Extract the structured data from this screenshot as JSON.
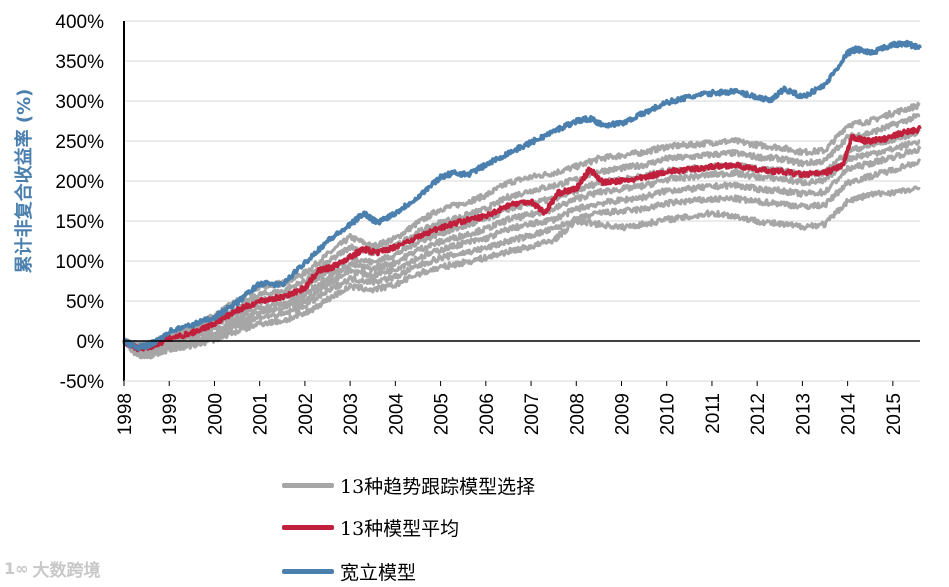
{
  "chart_data": {
    "type": "line",
    "title": "",
    "xlabel": "",
    "ylabel": "累计非复合收益率 (%)",
    "ylabel_color": "#4a7fae",
    "ylim": [
      -50,
      400
    ],
    "xlim": [
      1998,
      2015.6
    ],
    "y_ticks": [
      -50,
      0,
      50,
      100,
      150,
      200,
      250,
      300,
      350,
      400
    ],
    "y_tick_labels": [
      "-50%",
      "0%",
      "50%",
      "100%",
      "150%",
      "200%",
      "250%",
      "300%",
      "350%",
      "400%"
    ],
    "x_ticks": [
      "1998",
      "1999",
      "2000",
      "2001",
      "2002",
      "2003",
      "2004",
      "2005",
      "2006",
      "2007",
      "2008",
      "2009",
      "2010",
      "2011",
      "2012",
      "2013",
      "2014",
      "2015"
    ],
    "grid": true,
    "legend_position": "bottom",
    "series": [
      {
        "name": "13种趋势跟踪模型选择",
        "color": "#a6a6a6",
        "lines": [
          {
            "x": [
              1998,
              1998.3,
              1998.6,
              1999,
              1999.5,
              2000,
              2000.5,
              2001,
              2001.5,
              2002,
              2002.5,
              2003,
              2003.5,
              2004,
              2004.5,
              2005,
              2005.5,
              2006,
              2006.5,
              2007,
              2007.5,
              2008,
              2008.5,
              2009,
              2009.5,
              2010,
              2010.5,
              2011,
              2011.5,
              2012,
              2012.5,
              2013,
              2013.5,
              2014,
              2014.5,
              2015,
              2015.6
            ],
            "y": [
              0,
              -5,
              -3,
              8,
              15,
              32,
              50,
              68,
              72,
              85,
              108,
              130,
              118,
              128,
              148,
              165,
              172,
              182,
              198,
              205,
              210,
              218,
              228,
              232,
              236,
              243,
              245,
              248,
              250,
              245,
              242,
              236,
              238,
              270,
              275,
              285,
              295
            ]
          },
          {
            "x": [
              1998,
              1998.3,
              1998.6,
              1999,
              1999.5,
              2000,
              2000.5,
              2001,
              2001.5,
              2002,
              2002.5,
              2003,
              2003.5,
              2004,
              2004.5,
              2005,
              2005.5,
              2006,
              2006.5,
              2007,
              2007.5,
              2008,
              2008.5,
              2009,
              2009.5,
              2010,
              2010.5,
              2011,
              2011.5,
              2012,
              2012.5,
              2013,
              2013.5,
              2014,
              2014.5,
              2015,
              2015.6
            ],
            "y": [
              0,
              -8,
              -5,
              5,
              12,
              25,
              42,
              58,
              62,
              75,
              98,
              118,
              110,
              118,
              136,
              148,
              156,
              165,
              180,
              188,
              194,
              202,
              212,
              216,
              220,
              228,
              230,
              233,
              235,
              230,
              228,
              222,
              225,
              255,
              260,
              270,
              282
            ]
          },
          {
            "x": [
              1998,
              1998.3,
              1998.6,
              1999,
              1999.5,
              2000,
              2000.5,
              2001,
              2001.5,
              2002,
              2002.5,
              2003,
              2003.5,
              2004,
              2004.5,
              2005,
              2005.5,
              2006,
              2006.5,
              2007,
              2007.5,
              2008,
              2008.5,
              2009,
              2009.5,
              2010,
              2010.5,
              2011,
              2011.5,
              2012,
              2012.5,
              2013,
              2013.5,
              2014,
              2014.5,
              2015,
              2015.6
            ],
            "y": [
              0,
              -10,
              -8,
              2,
              8,
              20,
              35,
              50,
              55,
              66,
              88,
              105,
              98,
              108,
              124,
              135,
              143,
              152,
              165,
              172,
              178,
              188,
              198,
              202,
              206,
              213,
              215,
              218,
              220,
              215,
              213,
              208,
              210,
              238,
              244,
              252,
              262
            ]
          },
          {
            "x": [
              1998,
              1998.3,
              1998.6,
              1999,
              1999.5,
              2000,
              2000.5,
              2001,
              2001.5,
              2002,
              2002.5,
              2003,
              2003.5,
              2004,
              2004.5,
              2005,
              2005.5,
              2006,
              2006.5,
              2007,
              2007.5,
              2008,
              2008.5,
              2009,
              2009.5,
              2010,
              2010.5,
              2011,
              2011.5,
              2012,
              2012.5,
              2013,
              2013.5,
              2014,
              2014.5,
              2015,
              2015.6
            ],
            "y": [
              0,
              -12,
              -10,
              -2,
              4,
              14,
              28,
              42,
              46,
              58,
              80,
              96,
              90,
              98,
              114,
              124,
              132,
              140,
              152,
              158,
              165,
              178,
              186,
              190,
              194,
              202,
              205,
              208,
              210,
              205,
              203,
              198,
              200,
              228,
              234,
              240,
              250
            ]
          },
          {
            "x": [
              1998,
              1998.3,
              1998.6,
              1999,
              1999.5,
              2000,
              2000.5,
              2001,
              2001.5,
              2002,
              2002.5,
              2003,
              2003.5,
              2004,
              2004.5,
              2005,
              2005.5,
              2006,
              2006.5,
              2007,
              2007.5,
              2008,
              2008.5,
              2009,
              2009.5,
              2010,
              2010.5,
              2011,
              2011.5,
              2012,
              2012.5,
              2013,
              2013.5,
              2014,
              2014.5,
              2015,
              2015.6
            ],
            "y": [
              0,
              -14,
              -12,
              -5,
              0,
              10,
              22,
              36,
              40,
              50,
              72,
              88,
              82,
              90,
              104,
              114,
              122,
              128,
              140,
              146,
              152,
              165,
              172,
              176,
              180,
              188,
              190,
              193,
              195,
              190,
              188,
              184,
              186,
              215,
              222,
              230,
              240
            ]
          },
          {
            "x": [
              1998,
              1998.3,
              1998.6,
              1999,
              1999.5,
              2000,
              2000.5,
              2001,
              2001.5,
              2002,
              2002.5,
              2003,
              2003.5,
              2004,
              2004.5,
              2005,
              2005.5,
              2006,
              2006.5,
              2007,
              2007.5,
              2008,
              2008.5,
              2009,
              2009.5,
              2010,
              2010.5,
              2011,
              2011.5,
              2012,
              2012.5,
              2013,
              2013.5,
              2014,
              2014.5,
              2015,
              2015.6
            ],
            "y": [
              0,
              -16,
              -15,
              -8,
              -3,
              6,
              18,
              30,
              33,
              44,
              62,
              78,
              74,
              80,
              94,
              104,
              110,
              116,
              125,
              132,
              140,
              152,
              160,
              162,
              165,
              172,
              175,
              177,
              178,
              174,
              172,
              168,
              170,
              198,
              206,
              214,
              225
            ]
          },
          {
            "x": [
              1998,
              1998.3,
              1998.6,
              1999,
              1999.5,
              2000,
              2000.5,
              2001,
              2001.5,
              2002,
              2002.5,
              2003,
              2003.5,
              2004,
              2004.5,
              2005,
              2005.5,
              2006,
              2006.5,
              2007,
              2007.5,
              2008,
              2008.5,
              2009,
              2009.5,
              2010,
              2010.5,
              2011,
              2011.5,
              2012,
              2012.5,
              2013,
              2013.5,
              2014,
              2014.5,
              2015,
              2015.6
            ],
            "y": [
              0,
              -18,
              -18,
              -10,
              -6,
              2,
              12,
              22,
              25,
              34,
              52,
              68,
              64,
              70,
              84,
              92,
              98,
              104,
              112,
              118,
              126,
              150,
              146,
              142,
              146,
              152,
              155,
              160,
              156,
              150,
              146,
              143,
              146,
              175,
              183,
              186,
              190
            ]
          }
        ]
      },
      {
        "name": "13种模型平均",
        "color": "#c0203c",
        "x": [
          1998,
          1998.3,
          1998.6,
          1999,
          1999.5,
          2000,
          2000.5,
          2001,
          2001.5,
          2002,
          2002.3,
          2002.6,
          2003,
          2003.3,
          2003.6,
          2004,
          2004.5,
          2005,
          2005.5,
          2006,
          2006.5,
          2007,
          2007.3,
          2007.6,
          2008,
          2008.3,
          2008.6,
          2009,
          2009.5,
          2010,
          2010.5,
          2011,
          2011.5,
          2012,
          2012.5,
          2013,
          2013.5,
          2013.9,
          2014.1,
          2014.4,
          2014.8,
          2015.2,
          2015.6
        ],
        "y": [
          0,
          -9,
          -7,
          3,
          10,
          22,
          38,
          50,
          55,
          66,
          88,
          92,
          105,
          115,
          110,
          118,
          130,
          142,
          150,
          156,
          170,
          175,
          160,
          185,
          190,
          215,
          198,
          200,
          204,
          212,
          214,
          218,
          220,
          214,
          212,
          208,
          210,
          220,
          255,
          250,
          252,
          260,
          265
        ]
      },
      {
        "name": "宽立模型",
        "color": "#4a7fae",
        "x": [
          1998,
          1998.3,
          1998.6,
          1999,
          1999.5,
          2000,
          2000.5,
          2001,
          2001.5,
          2002,
          2002.5,
          2003,
          2003.3,
          2003.6,
          2004,
          2004.5,
          2005,
          2005.3,
          2005.6,
          2006,
          2006.5,
          2007,
          2007.5,
          2008,
          2008.3,
          2008.6,
          2009,
          2009.5,
          2010,
          2010.5,
          2011,
          2011.5,
          2012,
          2012.3,
          2012.6,
          2013,
          2013.5,
          2014,
          2014.2,
          2014.5,
          2015,
          2015.3,
          2015.6
        ],
        "y": [
          0,
          -8,
          -5,
          12,
          20,
          30,
          48,
          72,
          70,
          98,
          125,
          145,
          160,
          148,
          160,
          180,
          205,
          210,
          208,
          220,
          235,
          248,
          262,
          275,
          278,
          270,
          272,
          285,
          298,
          305,
          310,
          312,
          305,
          300,
          315,
          305,
          320,
          360,
          365,
          360,
          370,
          372,
          366
        ]
      }
    ]
  },
  "legend": {
    "items": [
      {
        "label": "13种趋势跟踪模型选择",
        "color": "#a6a6a6"
      },
      {
        "label": "13种模型平均",
        "color": "#c0203c"
      },
      {
        "label": "宽立模型",
        "color": "#4a7fae"
      }
    ]
  },
  "watermark": {
    "text": "大数跨境",
    "logo": "1∞"
  }
}
